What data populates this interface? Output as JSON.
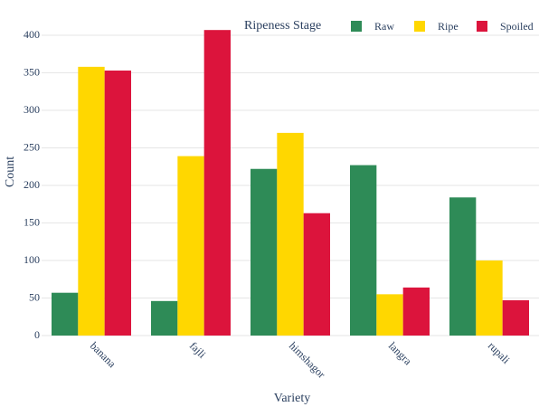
{
  "chart_data": {
    "type": "grouped_bar",
    "x_label": "Variety",
    "y_label": "Count",
    "legend_title": "Ripeness Stage",
    "categories": [
      "banana",
      "fajli",
      "himshagor",
      "langra",
      "rupali"
    ],
    "series": [
      {
        "name": "Raw",
        "color": "#2e8b57",
        "values": [
          57,
          46,
          222,
          227,
          184
        ]
      },
      {
        "name": "Ripe",
        "color": "#ffd700",
        "values": [
          358,
          239,
          270,
          55,
          100
        ]
      },
      {
        "name": "Spoiled",
        "color": "#dc143c",
        "values": [
          353,
          407,
          163,
          64,
          47
        ]
      }
    ],
    "ylim": [
      0,
      400
    ],
    "yticks": [
      0,
      50,
      100,
      150,
      200,
      250,
      300,
      350,
      400
    ],
    "grid": true
  }
}
